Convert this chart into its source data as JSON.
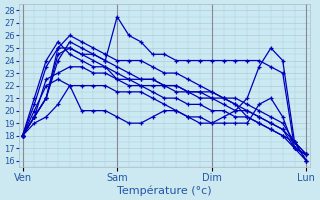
{
  "title": "Température (°c)",
  "yticks": [
    16,
    17,
    18,
    19,
    20,
    21,
    22,
    23,
    24,
    25,
    26,
    27,
    28
  ],
  "ylim": [
    15.5,
    28.5
  ],
  "xtick_labels": [
    "Ven",
    "Sam",
    "Dim",
    "Lun"
  ],
  "xtick_positions": [
    0,
    8,
    16,
    24
  ],
  "xlim": [
    -0.3,
    24.3
  ],
  "background_color": "#cce8f0",
  "grid_color": "#aaccdd",
  "line_color": "#0000bb",
  "series": [
    [
      18.0,
      19.5,
      21.0,
      24.5,
      25.0,
      24.5,
      24.5,
      24.0,
      27.5,
      26.0,
      25.5,
      24.5,
      24.5,
      24.0,
      24.0,
      24.0,
      24.0,
      24.0,
      24.0,
      24.0,
      24.0,
      23.5,
      23.0,
      17.0,
      16.5
    ],
    [
      18.0,
      19.5,
      21.0,
      25.0,
      26.0,
      25.5,
      25.0,
      24.5,
      24.0,
      24.0,
      24.0,
      23.5,
      23.0,
      23.0,
      22.5,
      22.0,
      21.5,
      21.0,
      20.5,
      19.5,
      19.0,
      18.5,
      18.0,
      17.0,
      16.5
    ],
    [
      18.0,
      19.5,
      21.0,
      24.0,
      25.5,
      25.0,
      24.5,
      24.0,
      23.5,
      23.0,
      22.5,
      22.5,
      22.0,
      22.0,
      21.5,
      21.5,
      21.5,
      21.0,
      21.0,
      20.5,
      20.0,
      19.5,
      19.0,
      17.5,
      16.0
    ],
    [
      18.0,
      19.5,
      22.5,
      23.0,
      23.5,
      23.5,
      23.0,
      23.0,
      22.5,
      22.0,
      22.0,
      21.5,
      21.0,
      21.0,
      20.5,
      20.5,
      20.0,
      20.0,
      19.5,
      19.5,
      19.0,
      18.5,
      18.0,
      17.5,
      16.0
    ],
    [
      18.0,
      20.5,
      23.5,
      25.0,
      25.0,
      24.5,
      24.0,
      23.5,
      22.5,
      22.5,
      22.5,
      22.5,
      22.0,
      22.0,
      21.5,
      21.5,
      21.0,
      21.0,
      20.5,
      20.0,
      19.5,
      19.0,
      18.5,
      17.0,
      16.5
    ],
    [
      18.0,
      21.0,
      24.0,
      25.5,
      24.5,
      24.0,
      23.5,
      23.5,
      23.0,
      22.5,
      22.0,
      22.0,
      22.0,
      21.5,
      21.5,
      21.0,
      21.0,
      20.5,
      20.0,
      20.0,
      19.5,
      19.0,
      18.5,
      17.5,
      16.5
    ],
    [
      18.0,
      20.0,
      22.0,
      22.5,
      22.0,
      22.0,
      22.0,
      22.0,
      21.5,
      21.5,
      21.5,
      21.0,
      20.5,
      20.0,
      19.5,
      19.0,
      19.0,
      19.5,
      20.0,
      21.0,
      23.5,
      25.0,
      24.0,
      17.5,
      16.5
    ],
    [
      18.0,
      19.0,
      19.5,
      20.5,
      22.0,
      20.0,
      20.0,
      20.0,
      19.5,
      19.0,
      19.0,
      19.5,
      20.0,
      20.0,
      19.5,
      19.5,
      19.0,
      19.0,
      19.0,
      19.0,
      20.5,
      21.0,
      19.5,
      17.0,
      16.0
    ]
  ]
}
